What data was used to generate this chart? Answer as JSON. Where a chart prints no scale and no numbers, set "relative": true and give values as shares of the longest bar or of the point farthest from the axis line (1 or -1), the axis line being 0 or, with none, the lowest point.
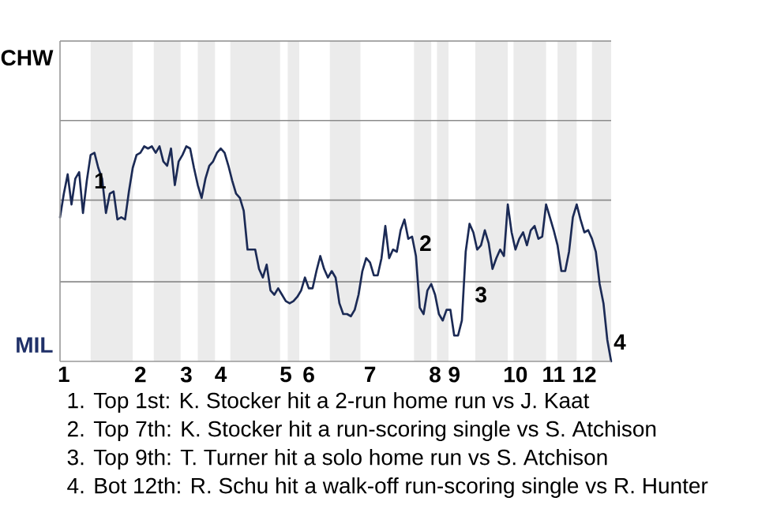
{
  "chart_data": {
    "type": "line",
    "relative": true,
    "categories": [
      null,
      "1",
      null,
      null,
      null,
      null,
      null,
      null,
      null,
      null,
      null,
      null,
      null,
      null,
      null,
      null,
      null,
      null,
      null,
      null,
      null,
      "2",
      null,
      null,
      null,
      null,
      null,
      null,
      null,
      null,
      null,
      null,
      null,
      "3",
      null,
      null,
      null,
      null,
      null,
      null,
      null,
      null,
      "4",
      null,
      null,
      null,
      null,
      null,
      null,
      null,
      null,
      null,
      null,
      null,
      null,
      null,
      null,
      null,
      null,
      "5",
      null,
      null,
      null,
      null,
      null,
      "6",
      null,
      null,
      null,
      null,
      null,
      null,
      null,
      null,
      null,
      null,
      null,
      null,
      null,
      null,
      null,
      "7",
      null,
      null,
      null,
      null,
      null,
      null,
      null,
      null,
      null,
      null,
      null,
      null,
      null,
      null,
      null,
      null,
      "8",
      null,
      null,
      null,
      null,
      "9",
      null,
      null,
      null,
      null,
      null,
      null,
      null,
      null,
      null,
      null,
      null,
      null,
      null,
      null,
      null,
      "10",
      null,
      null,
      null,
      null,
      null,
      null,
      null,
      null,
      null,
      "11",
      null,
      null,
      null,
      null,
      null,
      null,
      null,
      "12",
      null,
      null,
      null,
      null,
      null,
      null,
      null
    ],
    "series": [
      {
        "color": "#1b2a55",
        "values": [
          0.67,
          0.78,
          0.87,
          0.73,
          0.85,
          0.88,
          0.69,
          0.84,
          0.96,
          0.97,
          0.9,
          0.85,
          0.69,
          0.78,
          0.79,
          0.66,
          0.67,
          0.66,
          0.79,
          0.9,
          0.96,
          0.97,
          1,
          0.99,
          1,
          0.97,
          1,
          0.93,
          0.91,
          0.99,
          0.82,
          0.93,
          0.96,
          1,
          0.99,
          0.9,
          0.82,
          0.76,
          0.85,
          0.91,
          0.93,
          0.97,
          0.99,
          0.97,
          0.91,
          0.84,
          0.78,
          0.76,
          0.7,
          0.52,
          0.52,
          0.52,
          0.43,
          0.39,
          0.45,
          0.33,
          0.31,
          0.34,
          0.31,
          0.28,
          0.27,
          0.28,
          0.3,
          0.33,
          0.39,
          0.34,
          0.34,
          0.42,
          0.49,
          0.43,
          0.39,
          0.42,
          0.39,
          0.27,
          0.22,
          0.22,
          0.21,
          0.24,
          0.31,
          0.42,
          0.48,
          0.46,
          0.4,
          0.4,
          0.48,
          0.63,
          0.48,
          0.52,
          0.51,
          0.61,
          0.66,
          0.57,
          0.58,
          0.49,
          0.25,
          0.22,
          0.33,
          0.36,
          0.31,
          0.22,
          0.19,
          0.24,
          0.24,
          0.12,
          0.12,
          0.19,
          0.51,
          0.64,
          0.6,
          0.52,
          0.54,
          0.61,
          0.55,
          0.43,
          0.48,
          0.52,
          0.49,
          0.73,
          0.6,
          0.52,
          0.57,
          0.6,
          0.54,
          0.61,
          0.63,
          0.57,
          0.58,
          0.73,
          0.67,
          0.61,
          0.54,
          0.42,
          0.42,
          0.51,
          0.67,
          0.73,
          0.66,
          0.6,
          0.61,
          0.57,
          0.51,
          0.36,
          0.27,
          0.1,
          0
        ]
      }
    ],
    "ref_lines": [
      {
        "axis": "y",
        "value": 0.37,
        "color": "#8c8c8c"
      },
      {
        "axis": "y",
        "value": 0.75,
        "color": "#8c8c8c"
      },
      {
        "axis": "y",
        "value": 1.12,
        "color": "#8c8c8c"
      },
      {
        "axis": "y",
        "value": 1.49,
        "color": "#8c8c8c"
      }
    ],
    "annotations": [
      "1",
      "2",
      "3",
      "4",
      "CHW",
      "MIL",
      "1. Top 1st: K. Stocker hit a 2-run home run vs J. Kaat",
      "2. Top 7th: K. Stocker hit a run-scoring single vs S. Atchison",
      "3. Top 9th: T. Turner hit a solo home run vs S. Atchison",
      "4. Bot 12th: R. Schu hit a walk-off run-scoring single vs R. Hunter"
    ]
  }
}
